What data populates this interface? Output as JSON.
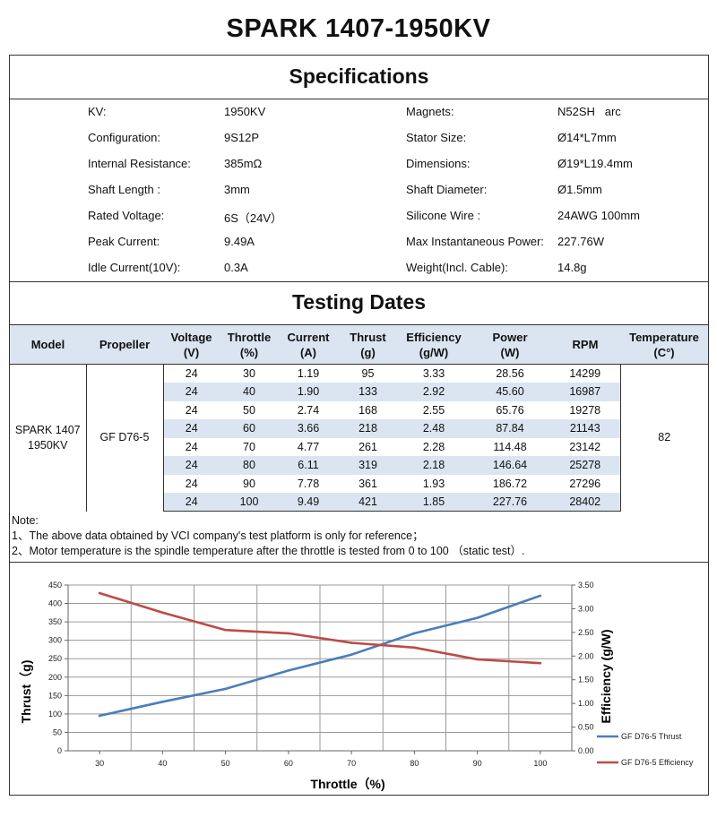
{
  "title": "SPARK 1407-1950KV",
  "specifications": {
    "heading": "Specifications",
    "left": [
      {
        "label": "KV:",
        "value": "1950KV"
      },
      {
        "label": "Configuration:",
        "value": "9S12P"
      },
      {
        "label": "Internal Resistance:",
        "value": "385mΩ"
      },
      {
        "label": "Shaft Length :",
        "value": "3mm"
      },
      {
        "label": "Rated Voltage:",
        "value": "6S（24V）"
      },
      {
        "label": "Peak Current:",
        "value": "9.49A"
      },
      {
        "label": "Idle Current(10V):",
        "value": "0.3A"
      }
    ],
    "right": [
      {
        "label": "Magnets:",
        "value": "N52SH   arc"
      },
      {
        "label": "Stator Size:",
        "value": "Ø14*L7mm"
      },
      {
        "label": "Dimensions:",
        "value": "Ø19*L19.4mm"
      },
      {
        "label": "Shaft Diameter:",
        "value": "Ø1.5mm"
      },
      {
        "label": "Silicone Wire :",
        "value": "24AWG 100mm"
      },
      {
        "label": "Max Instantaneous Power:",
        "value": "227.76W"
      },
      {
        "label": "Weight(Incl. Cable):",
        "value": "14.8g"
      }
    ]
  },
  "testing": {
    "heading": "Testing Dates",
    "headers": {
      "model": "Model",
      "propeller": "Propeller",
      "voltage": [
        "Voltage",
        "(V)"
      ],
      "throttle": [
        "Throttle",
        "(%)"
      ],
      "current": [
        "Current",
        "(A)"
      ],
      "thrust": [
        "Thrust",
        "(g)"
      ],
      "efficiency": [
        "Efficiency",
        "(g/W)"
      ],
      "power": [
        "Power",
        "(W)"
      ],
      "rpm": "RPM",
      "temperature": [
        "Temperature",
        "(C°)"
      ]
    },
    "model": [
      "SPARK 1407",
      "1950KV"
    ],
    "propeller": "GF D76-5",
    "temperature": "82",
    "rows": [
      [
        "24",
        "30",
        "1.19",
        "95",
        "3.33",
        "28.56",
        "14299"
      ],
      [
        "24",
        "40",
        "1.90",
        "133",
        "2.92",
        "45.60",
        "16987"
      ],
      [
        "24",
        "50",
        "2.74",
        "168",
        "2.55",
        "65.76",
        "19278"
      ],
      [
        "24",
        "60",
        "3.66",
        "218",
        "2.48",
        "87.84",
        "21143"
      ],
      [
        "24",
        "70",
        "4.77",
        "261",
        "2.28",
        "114.48",
        "23142"
      ],
      [
        "24",
        "80",
        "6.11",
        "319",
        "2.18",
        "146.64",
        "25278"
      ],
      [
        "24",
        "90",
        "7.78",
        "361",
        "1.93",
        "186.72",
        "27296"
      ],
      [
        "24",
        "100",
        "9.49",
        "421",
        "1.85",
        "227.76",
        "28402"
      ]
    ]
  },
  "notes": [
    "Note:",
    "1、The above data obtained by VCI company's test platform is only for reference；",
    "2、Motor temperature is the spindle temperature after the throttle is tested from 0 to 100 （static test）."
  ],
  "chart_data": {
    "type": "line",
    "x": [
      30,
      40,
      50,
      60,
      70,
      80,
      90,
      100
    ],
    "xlabel": "Throttle（%)",
    "ylabel_left": "Thrust（g)",
    "ylabel_right": "Efficiency (g/W)",
    "ylim_left": [
      0,
      450
    ],
    "ylim_right": [
      0,
      3.5
    ],
    "left_ticks": [
      "0",
      "50",
      "100",
      "150",
      "200",
      "250",
      "300",
      "350",
      "400",
      "450"
    ],
    "right_ticks": [
      "0.00",
      "0.50",
      "1.00",
      "1.50",
      "2.00",
      "2.50",
      "3.00",
      "3.50"
    ],
    "x_ticks": [
      "30",
      "40",
      "50",
      "60",
      "70",
      "80",
      "90",
      "100"
    ],
    "grid": true,
    "legend_position": "right",
    "series": [
      {
        "name": "GF D76-5 Thrust",
        "axis": "left",
        "color": "#4a7ebb",
        "values": [
          95,
          133,
          168,
          218,
          261,
          319,
          361,
          421
        ]
      },
      {
        "name": "GF D76-5 Efficiency",
        "axis": "right",
        "color": "#be4b48",
        "values": [
          3.33,
          2.92,
          2.55,
          2.48,
          2.28,
          2.18,
          1.93,
          1.85
        ]
      }
    ]
  }
}
